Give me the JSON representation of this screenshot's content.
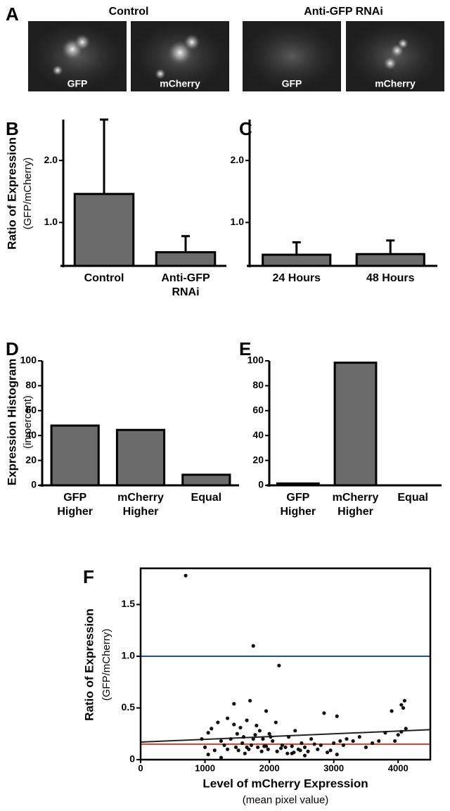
{
  "panel_a": {
    "panel": "A",
    "groups": [
      {
        "title": "Control",
        "images": [
          "GFP",
          "mCherry"
        ]
      },
      {
        "title": "Anti-GFP RNAi",
        "images": [
          "GFP",
          "mCherry"
        ]
      }
    ]
  },
  "chart_data": [
    {
      "type": "bar",
      "panel": "B",
      "ylabel": "Ratio of Expression",
      "ylabel_sub": "(GFP/mCherry)",
      "categories": [
        [
          "Control"
        ],
        [
          "Anti-GFP",
          "RNAi"
        ]
      ],
      "values": [
        1.46,
        0.52
      ],
      "errors": [
        1.2,
        0.26
      ],
      "color": "#6b6b6b",
      "ylim": [
        0.3,
        2.66
      ],
      "yticks": [
        {
          "value": 1,
          "label": "1.0"
        },
        {
          "value": 2,
          "label": "2.0"
        }
      ]
    },
    {
      "type": "bar",
      "panel": "C",
      "categories": [
        [
          "24 Hours"
        ],
        [
          "48 Hours"
        ]
      ],
      "values": [
        0.48,
        0.49
      ],
      "errors": [
        0.2,
        0.22
      ],
      "color": "#6b6b6b",
      "ylim": [
        0.3,
        2.66
      ],
      "yticks": [
        {
          "value": 1,
          "label": "1.0"
        },
        {
          "value": 2,
          "label": "2.0"
        }
      ]
    },
    {
      "type": "bar",
      "panel": "D",
      "ylabel": "Expression Histogram",
      "ylabel_sub": "(in percent)",
      "categories": [
        [
          "GFP",
          "Higher"
        ],
        [
          "mCherry",
          "Higher"
        ],
        [
          "Equal"
        ]
      ],
      "values": [
        48,
        44.5,
        8.5
      ],
      "color": "#6b6b6b",
      "ylim": [
        0,
        100
      ],
      "yticks": [
        0,
        20,
        40,
        60,
        80,
        100
      ]
    },
    {
      "type": "bar",
      "panel": "E",
      "categories": [
        [
          "GFP",
          "Higher"
        ],
        [
          "mCherry",
          "Higher"
        ],
        [
          "Equal"
        ]
      ],
      "values": [
        1.5,
        98.5,
        0
      ],
      "color": "#6b6b6b",
      "ylim": [
        0,
        100
      ],
      "yticks": [
        0,
        20,
        40,
        60,
        80,
        100
      ]
    },
    {
      "type": "scatter",
      "panel": "F",
      "ylabel": "Ratio of Expression",
      "ylabel_sub": "(GFP/mCherry)",
      "xlabel": "Level of mCherry Expression",
      "xlabel_sub": "(mean pixel value)",
      "xlim": [
        0,
        4500
      ],
      "xticks": [
        0,
        1000,
        2000,
        3000,
        4000
      ],
      "ylim": [
        0,
        1.85
      ],
      "yticks": [
        0,
        {
          "value": 0.5,
          "label": "0.5"
        },
        {
          "value": 1,
          "label": "1.0"
        },
        {
          "value": 1.5,
          "label": "1.5"
        }
      ],
      "color": "#111111",
      "x": [
        700,
        1750,
        2150,
        4100,
        4050,
        1700,
        1450,
        1950,
        2850,
        3900,
        1100,
        950,
        1200,
        1350,
        1500,
        1550,
        1600,
        1650,
        1800,
        1850,
        1900,
        2000,
        2050,
        2100,
        2200,
        2250,
        2300,
        2350,
        2400,
        2450,
        2500,
        2550,
        2600,
        2650,
        2700,
        2750,
        2800,
        2900,
        2950,
        3000,
        3050,
        3100,
        3150,
        3200,
        3300,
        3400,
        3500,
        3600,
        3700,
        3800,
        3950,
        4000,
        4080,
        4120,
        1000,
        1050,
        1150,
        1250,
        1300,
        1400,
        1480,
        1520,
        1580,
        1620,
        1680,
        1720,
        1780,
        1820,
        1880,
        1920,
        1980,
        2020,
        2120,
        2180,
        2280,
        2380,
        2480,
        1050,
        1350,
        1650,
        2550,
        3050,
        4050,
        1250,
        1450,
        1750,
        1950,
        2350
      ],
      "y": [
        1.78,
        1.1,
        0.91,
        0.57,
        0.53,
        0.57,
        0.54,
        0.47,
        0.45,
        0.47,
        0.3,
        0.2,
        0.36,
        0.4,
        0.25,
        0.31,
        0.22,
        0.38,
        0.33,
        0.28,
        0.2,
        0.25,
        0.18,
        0.36,
        0.14,
        0.12,
        0.22,
        0.13,
        0.28,
        0.1,
        0.16,
        0.12,
        0.08,
        0.2,
        0.15,
        0.1,
        0.14,
        0.07,
        0.09,
        0.16,
        0.42,
        0.18,
        0.14,
        0.2,
        0.18,
        0.22,
        0.12,
        0.16,
        0.18,
        0.26,
        0.18,
        0.24,
        0.5,
        0.3,
        0.12,
        0.05,
        0.09,
        0.18,
        0.14,
        0.2,
        0.12,
        0.09,
        0.16,
        0.06,
        0.1,
        0.14,
        0.24,
        0.12,
        0.08,
        0.13,
        0.1,
        0.22,
        0.08,
        0.11,
        0.06,
        0.07,
        0.09,
        0.26,
        0.1,
        0.12,
        0.04,
        0.05,
        0.27,
        0.02,
        0.34,
        0.2,
        0.13,
        0.06
      ],
      "reference_lines": [
        {
          "value": 1.0,
          "color": "#1f4f96"
        },
        {
          "value": 0.15,
          "color": "#e0442c"
        }
      ],
      "trend_line": {
        "x": [
          0,
          4500
        ],
        "y": [
          0.17,
          0.29
        ],
        "color": "#222222"
      }
    }
  ]
}
